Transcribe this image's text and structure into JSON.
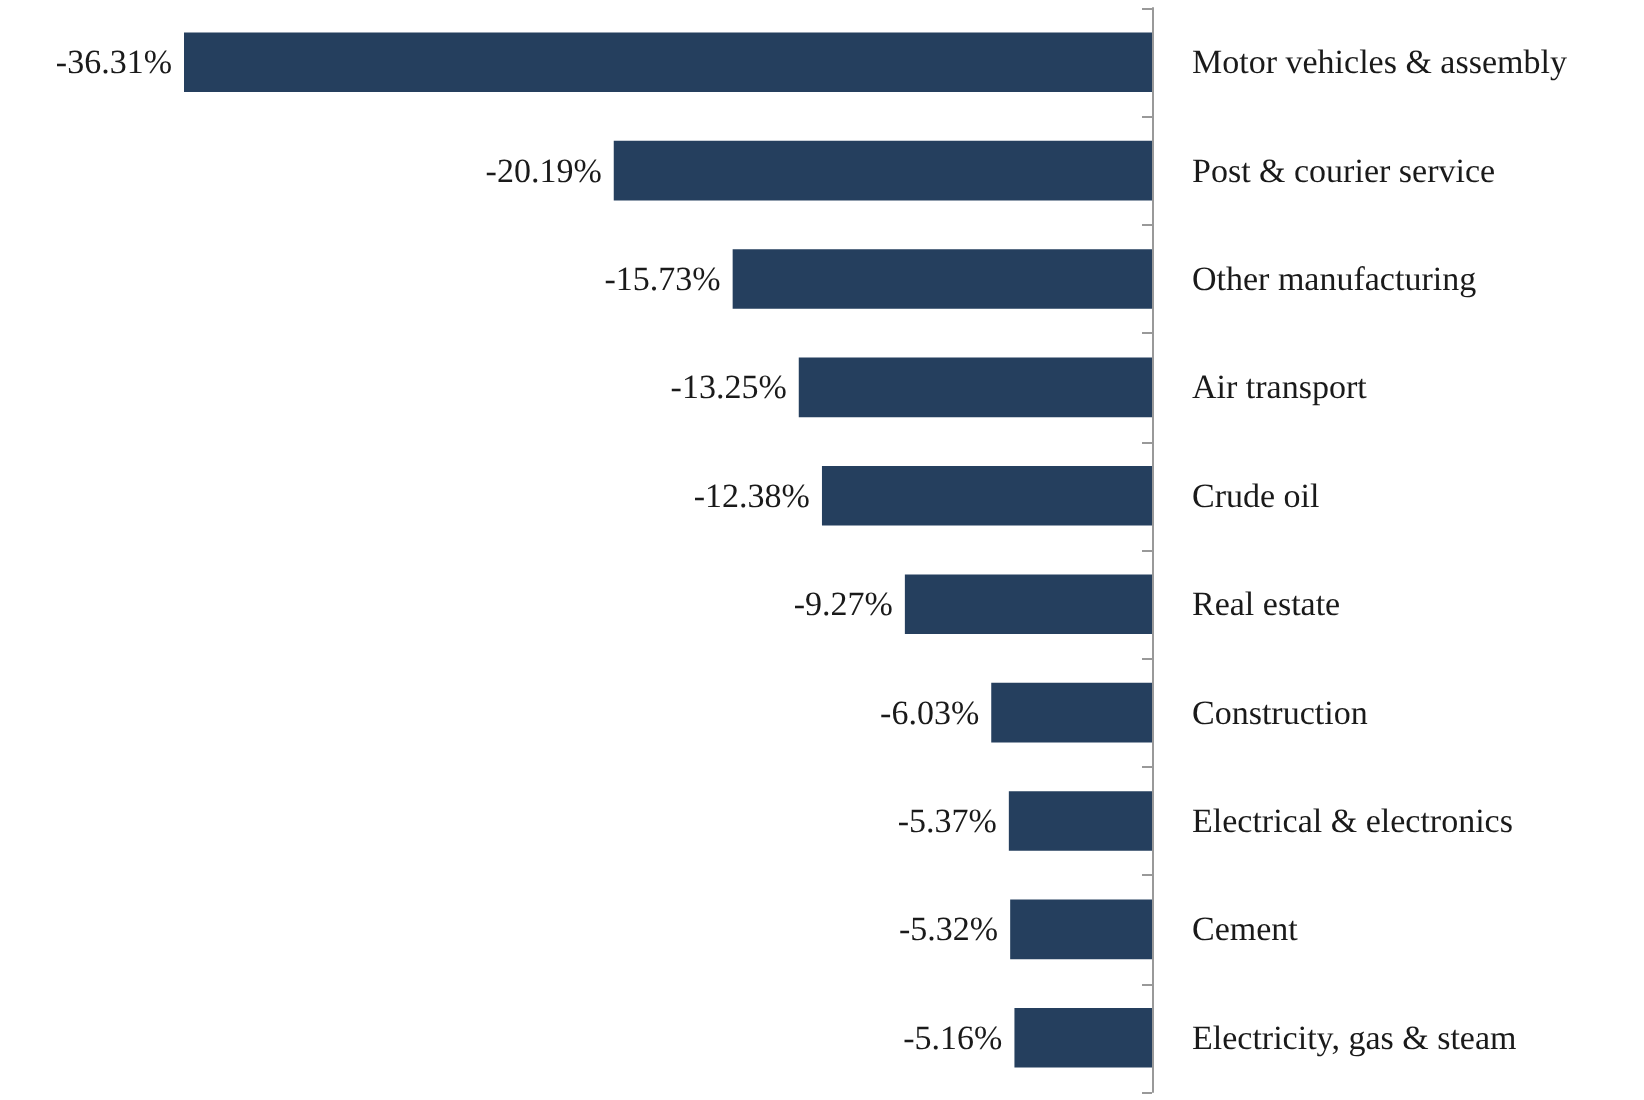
{
  "chart_data": {
    "type": "bar",
    "orientation": "horizontal",
    "categories": [
      "Motor vehicles & assembly",
      "Post & courier service",
      "Other manufacturing",
      "Air transport",
      "Crude oil",
      "Real estate",
      "Construction",
      "Electrical & electronics",
      "Cement",
      "Electricity, gas & steam"
    ],
    "values": [
      -36.31,
      -20.19,
      -15.73,
      -13.25,
      -12.38,
      -9.27,
      -6.03,
      -5.37,
      -5.32,
      -5.16
    ],
    "value_labels": [
      "-36.31%",
      "-20.19%",
      "-15.73%",
      "-13.25%",
      "-12.38%",
      "-9.27%",
      "-6.03%",
      "-5.37%",
      "-5.32%",
      "-5.16%"
    ],
    "color": "#253f5e",
    "tick_labels": "y"
  }
}
